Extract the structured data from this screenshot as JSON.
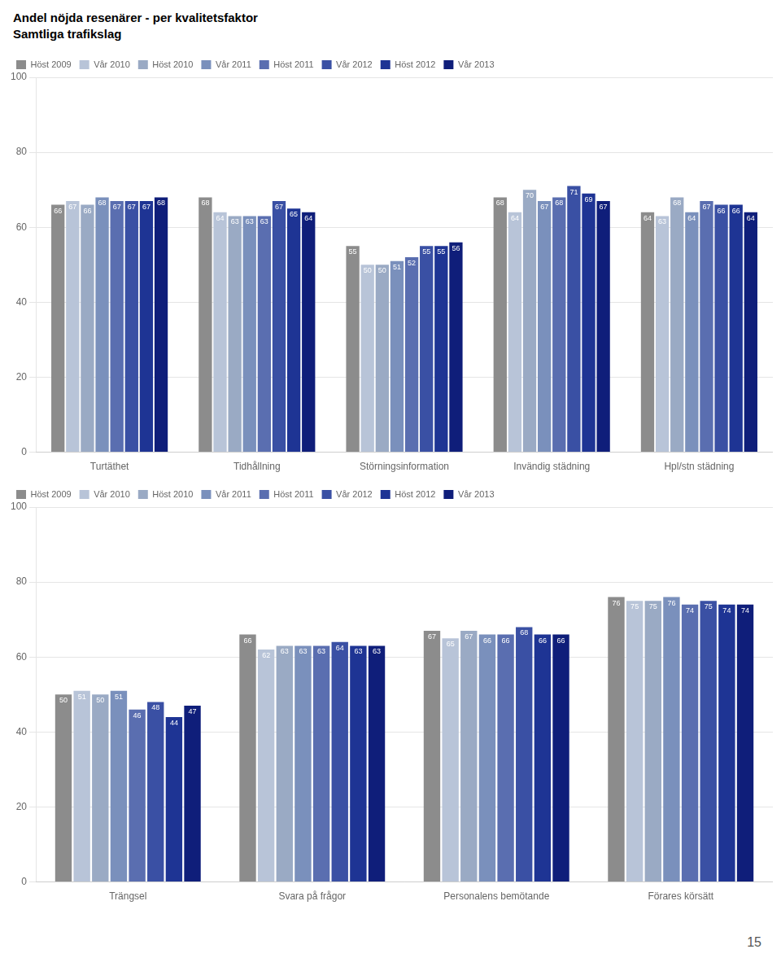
{
  "title": "Andel nöjda resenärer - per kvalitetsfaktor",
  "subtitle": "Samtliga trafikslag",
  "annotations": [
    "15"
  ],
  "chart_data": [
    {
      "type": "bar",
      "categories": [
        "Turtäthet",
        "Tidhållning",
        "Störningsinformation",
        "Invändig städning",
        "Hpl/stn städning"
      ],
      "series": [
        {
          "name": "Höst 2009",
          "color": "#8c8c8c",
          "values": [
            66,
            68,
            55,
            68,
            64
          ]
        },
        {
          "name": "Vår 2010",
          "color": "#b8c4d8",
          "values": [
            67,
            64,
            50,
            64,
            63
          ]
        },
        {
          "name": "Höst 2010",
          "color": "#9aaac4",
          "values": [
            66,
            63,
            50,
            70,
            68
          ]
        },
        {
          "name": "Vår 2011",
          "color": "#7a90bc",
          "values": [
            68,
            63,
            51,
            67,
            64
          ]
        },
        {
          "name": "Höst 2011",
          "color": "#5a6eb0",
          "values": [
            67,
            63,
            52,
            68,
            67
          ]
        },
        {
          "name": "Vår 2012",
          "color": "#3a50a4",
          "values": [
            67,
            67,
            55,
            71,
            66
          ]
        },
        {
          "name": "Höst 2012",
          "color": "#1e3494",
          "values": [
            67,
            65,
            55,
            69,
            66
          ]
        },
        {
          "name": "Vår 2013",
          "color": "#0f1e7a",
          "values": [
            68,
            64,
            56,
            67,
            64
          ]
        }
      ],
      "ylim": [
        0,
        100
      ],
      "yticks": [
        0,
        20,
        40,
        60,
        80,
        100
      ],
      "grid": true,
      "legend": "top left",
      "data_labels": true
    },
    {
      "type": "bar",
      "categories": [
        "Trängsel",
        "Svara på frågor",
        "Personalens bemötande",
        "Förares körsätt"
      ],
      "series": [
        {
          "name": "Höst 2009",
          "color": "#8c8c8c",
          "values": [
            50,
            66,
            67,
            76
          ]
        },
        {
          "name": "Vår 2010",
          "color": "#b8c4d8",
          "values": [
            51,
            62,
            65,
            75
          ]
        },
        {
          "name": "Höst 2010",
          "color": "#9aaac4",
          "values": [
            50,
            63,
            67,
            75
          ]
        },
        {
          "name": "Vår 2011",
          "color": "#7a90bc",
          "values": [
            51,
            63,
            66,
            76
          ]
        },
        {
          "name": "Höst 2011",
          "color": "#5a6eb0",
          "values": [
            46,
            63,
            66,
            74
          ]
        },
        {
          "name": "Vår 2012",
          "color": "#3a50a4",
          "values": [
            48,
            64,
            68,
            75
          ]
        },
        {
          "name": "Höst 2012",
          "color": "#1e3494",
          "values": [
            44,
            63,
            66,
            74
          ]
        },
        {
          "name": "Vår 2013",
          "color": "#0f1e7a",
          "values": [
            47,
            63,
            66,
            74
          ]
        }
      ],
      "ylim": [
        0,
        100
      ],
      "yticks": [
        0,
        20,
        40,
        60,
        80,
        100
      ],
      "grid": true,
      "legend": "top left",
      "data_labels": true
    }
  ]
}
